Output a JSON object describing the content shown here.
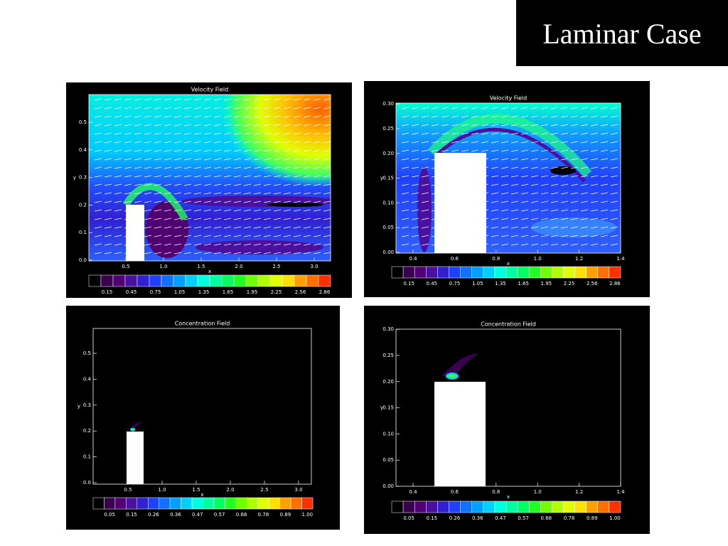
{
  "title": "Laminar Case",
  "panels": [
    {
      "title": "Velocity Field",
      "xlabel": "x",
      "ylabel": "y",
      "xticks": [
        "0.5",
        "1.0",
        "1.5",
        "2.0",
        "2.5",
        "3.0"
      ],
      "yticks": [
        "0.0",
        "0.1",
        "0.2",
        "0.3",
        "0.4",
        "0.5"
      ],
      "colorbar": [
        "0.15",
        "0.45",
        "0.75",
        "1.05",
        "1.35",
        "1.65",
        "1.95",
        "2.25",
        "2.56",
        "2.86"
      ]
    },
    {
      "title": "Velocity Field",
      "xlabel": "x",
      "ylabel": "y",
      "xticks": [
        "0.4",
        "0.6",
        "0.8",
        "1.0",
        "1.2",
        "1.4"
      ],
      "yticks": [
        "0.00",
        "0.05",
        "0.10",
        "0.15",
        "0.20",
        "0.25",
        "0.30"
      ],
      "colorbar": [
        "0.15",
        "0.45",
        "0.75",
        "1.05",
        "1.35",
        "1.65",
        "1.95",
        "2.25",
        "2.56",
        "2.86"
      ]
    },
    {
      "title": "Concentration Field",
      "xlabel": "x",
      "ylabel": "y",
      "xticks": [
        "0.5",
        "1.0",
        "1.5",
        "2.0",
        "2.5",
        "3.0"
      ],
      "yticks": [
        "0.0",
        "0.1",
        "0.2",
        "0.3",
        "0.4",
        "0.5"
      ],
      "colorbar": [
        "0.05",
        "0.15",
        "0.26",
        "0.36",
        "0.47",
        "0.57",
        "0.68",
        "0.78",
        "0.89",
        "1.00"
      ]
    },
    {
      "title": "Concentration Field",
      "xlabel": "x",
      "ylabel": "y",
      "xticks": [
        "0.4",
        "0.6",
        "0.8",
        "1.0",
        "1.2",
        "1.4"
      ],
      "yticks": [
        "0.00",
        "0.05",
        "0.10",
        "0.15",
        "0.20",
        "0.25",
        "0.30"
      ],
      "colorbar": [
        "0.05",
        "0.15",
        "0.26",
        "0.36",
        "0.47",
        "0.57",
        "0.68",
        "0.78",
        "0.89",
        "1.00"
      ]
    }
  ]
}
